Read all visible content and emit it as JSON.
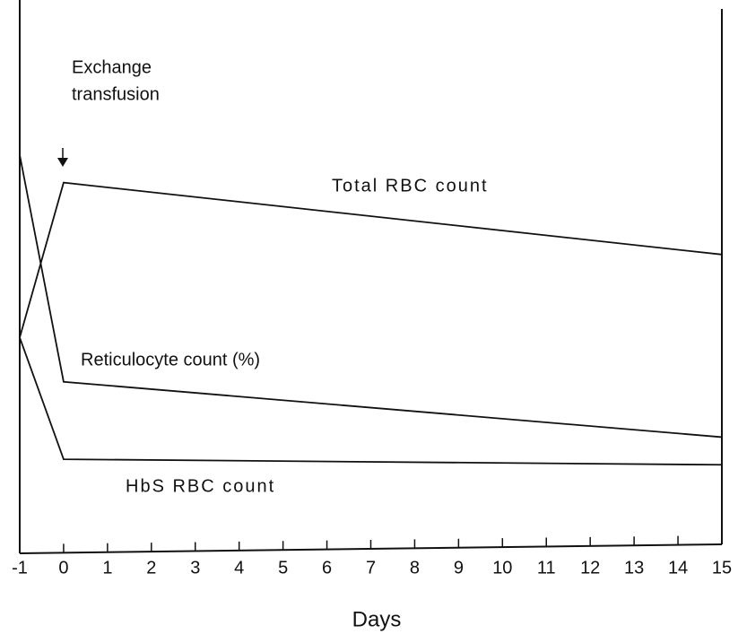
{
  "chart_data": {
    "type": "line",
    "annotation": [
      "Exchange",
      "transfusion"
    ],
    "xlabel": "Days",
    "x": [
      -1,
      0,
      15
    ],
    "xlim": [
      -1,
      15
    ],
    "xticks": [
      -1,
      0,
      1,
      2,
      3,
      4,
      5,
      6,
      7,
      8,
      9,
      10,
      11,
      12,
      13,
      14,
      15
    ],
    "ylim": [
      0,
      100
    ],
    "series": [
      {
        "name": "Total RBC count",
        "color": "#111111",
        "values": [
          39,
          67,
          54
        ]
      },
      {
        "name": "Reticulocyte count (%)",
        "color": "#111111",
        "values": [
          72,
          31,
          21
        ]
      },
      {
        "name": "HbS RBC count",
        "color": "#111111",
        "values": [
          39,
          17,
          16
        ]
      }
    ]
  }
}
